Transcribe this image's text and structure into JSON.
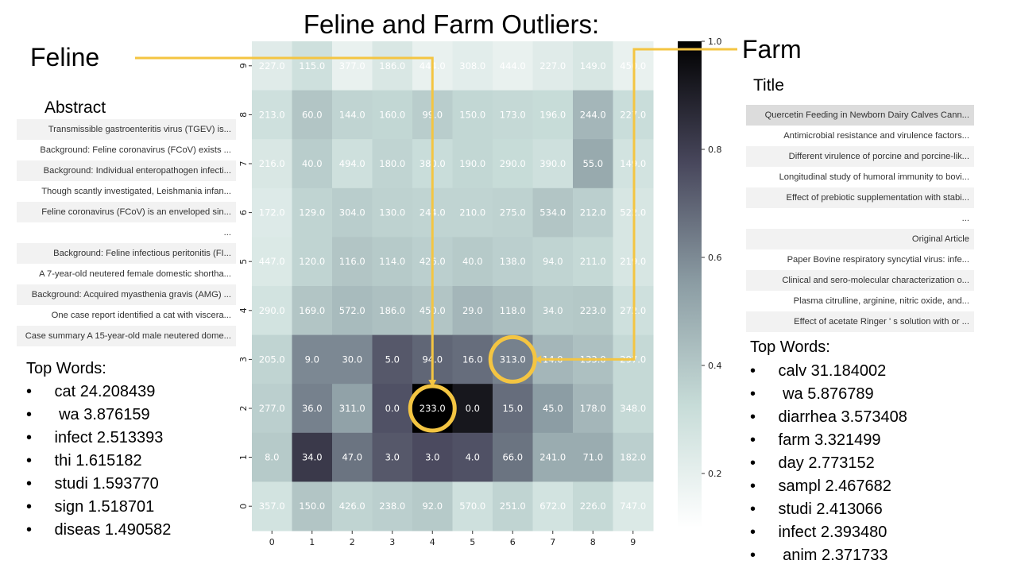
{
  "page_title": "Feline and Farm Outliers:",
  "feline": {
    "label": "Feline",
    "abstract_label": "Abstract",
    "abstracts": [
      "Transmissible gastroenteritis virus (TGEV) is...",
      "Background: Feline coronavirus (FCoV) exists ...",
      "Background: Individual enteropathogen infecti...",
      "Though scantly investigated, Leishmania infan...",
      "Feline coronavirus (FCoV) is an enveloped sin...",
      "...",
      "Background: Feline infectious peritonitis (FI...",
      "A 7-year-old neutered female domestic shortha...",
      "Background: Acquired myasthenia gravis (AMG) ...",
      "One case report identified a cat with viscera...",
      "Case summary A 15-year-old male neutered dome..."
    ],
    "top_words_label": "Top Words:",
    "top_words": [
      " cat 24.208439",
      "  wa 3.876159",
      " infect 2.513393",
      " thi 1.615182",
      " studi 1.593770",
      " sign 1.518701",
      " diseas 1.490582"
    ]
  },
  "farm": {
    "label": "Farm",
    "title_label": "Title",
    "titles": [
      "Quercetin Feeding in Newborn Dairy Calves Cann...",
      "Antimicrobial resistance and virulence factors...",
      "Different virulence of porcine and porcine-lik...",
      "Longitudinal study of humoral immunity to bovi...",
      "Effect of prebiotic supplementation with stabi...",
      "...",
      "Original Article",
      "Paper Bovine respiratory syncytial virus: infe...",
      "Clinical and sero-molecular characterization o...",
      "Plasma citrulline, arginine, nitric oxide, and...",
      "Effect of acetate Ringer ' s solution with or ..."
    ],
    "top_words_label": "Top Words:",
    "top_words": [
      " calv 31.184002",
      "  wa 5.876789",
      " diarrhea 3.573408",
      " farm 3.321499",
      " day 2.773152",
      " sampl 2.467682",
      " studi 2.413066",
      " infect 2.393480",
      "  anim 2.371733"
    ]
  },
  "chart_data": {
    "type": "heatmap",
    "x_ticks": [
      "0",
      "1",
      "2",
      "3",
      "4",
      "5",
      "6",
      "7",
      "8",
      "9"
    ],
    "y_ticks": [
      "0",
      "1",
      "2",
      "3",
      "4",
      "5",
      "6",
      "7",
      "8",
      "9"
    ],
    "rows_top_to_bottom": [
      {
        "y": "9",
        "labels": [
          "227.0",
          "115.0",
          "377.0",
          "186.0",
          "444.0",
          "308.0",
          "444.0",
          "227.0",
          "149.0",
          "450.0"
        ],
        "intensity": [
          0.14,
          0.22,
          0.1,
          0.17,
          0.1,
          0.13,
          0.1,
          0.14,
          0.18,
          0.1
        ]
      },
      {
        "y": "8",
        "labels": [
          "213.0",
          "60.0",
          "144.0",
          "160.0",
          "99.0",
          "150.0",
          "173.0",
          "196.0",
          "244.0",
          "227.0"
        ],
        "intensity": [
          0.22,
          0.34,
          0.28,
          0.27,
          0.31,
          0.27,
          0.26,
          0.25,
          0.4,
          0.24
        ]
      },
      {
        "y": "7",
        "labels": [
          "216.0",
          "40.0",
          "494.0",
          "180.0",
          "380.0",
          "190.0",
          "290.0",
          "390.0",
          "55.0",
          "149.0"
        ],
        "intensity": [
          0.17,
          0.31,
          0.22,
          0.28,
          0.24,
          0.27,
          0.25,
          0.22,
          0.45,
          0.2
        ]
      },
      {
        "y": "6",
        "labels": [
          "172.0",
          "129.0",
          "304.0",
          "130.0",
          "244.0",
          "210.0",
          "275.0",
          "534.0",
          "212.0",
          "522.0"
        ],
        "intensity": [
          0.15,
          0.28,
          0.31,
          0.29,
          0.28,
          0.28,
          0.29,
          0.34,
          0.3,
          0.18
        ]
      },
      {
        "y": "5",
        "labels": [
          "447.0",
          "120.0",
          "116.0",
          "114.0",
          "426.0",
          "40.0",
          "138.0",
          "94.0",
          "211.0",
          "219.0"
        ],
        "intensity": [
          0.16,
          0.28,
          0.34,
          0.32,
          0.3,
          0.32,
          0.3,
          0.28,
          0.26,
          0.18
        ]
      },
      {
        "y": "4",
        "labels": [
          "290.0",
          "169.0",
          "572.0",
          "186.0",
          "450.0",
          "29.0",
          "118.0",
          "34.0",
          "223.0",
          "272.0"
        ],
        "intensity": [
          0.2,
          0.34,
          0.38,
          0.36,
          0.34,
          0.4,
          0.37,
          0.32,
          0.33,
          0.22
        ]
      },
      {
        "y": "3",
        "labels": [
          "205.0",
          "9.0",
          "30.0",
          "5.0",
          "94.0",
          "16.0",
          "313.0",
          "14.0",
          "133.0",
          "297.0"
        ],
        "intensity": [
          0.28,
          0.56,
          0.56,
          0.7,
          0.66,
          0.64,
          0.58,
          0.4,
          0.36,
          0.26
        ]
      },
      {
        "y": "2",
        "labels": [
          "277.0",
          "36.0",
          "311.0",
          "0.0",
          "233.0",
          "0.0",
          "15.0",
          "45.0",
          "178.0",
          "348.0"
        ],
        "intensity": [
          0.3,
          0.58,
          0.48,
          0.72,
          1.0,
          0.92,
          0.64,
          0.5,
          0.4,
          0.26
        ]
      },
      {
        "y": "1",
        "labels": [
          "8.0",
          "34.0",
          "47.0",
          "3.0",
          "3.0",
          "4.0",
          "66.0",
          "241.0",
          "71.0",
          "182.0"
        ],
        "intensity": [
          0.32,
          0.8,
          0.62,
          0.7,
          0.74,
          0.72,
          0.62,
          0.44,
          0.44,
          0.3
        ]
      },
      {
        "y": "0",
        "labels": [
          "357.0",
          "150.0",
          "426.0",
          "238.0",
          "92.0",
          "570.0",
          "251.0",
          "672.0",
          "226.0",
          "747.0"
        ],
        "intensity": [
          0.2,
          0.34,
          0.28,
          0.3,
          0.32,
          0.22,
          0.28,
          0.2,
          0.26,
          0.16
        ]
      }
    ],
    "colorbar": {
      "ticks": [
        "1.0",
        "0.8",
        "0.6",
        "0.4",
        "0.2"
      ],
      "range": [
        0.1,
        1.0
      ]
    },
    "highlights": [
      {
        "x": "4",
        "y": "2",
        "label": "233.0"
      },
      {
        "x": "6",
        "y": "3",
        "label": "313.0"
      }
    ],
    "accent_color": "#f4c542"
  }
}
